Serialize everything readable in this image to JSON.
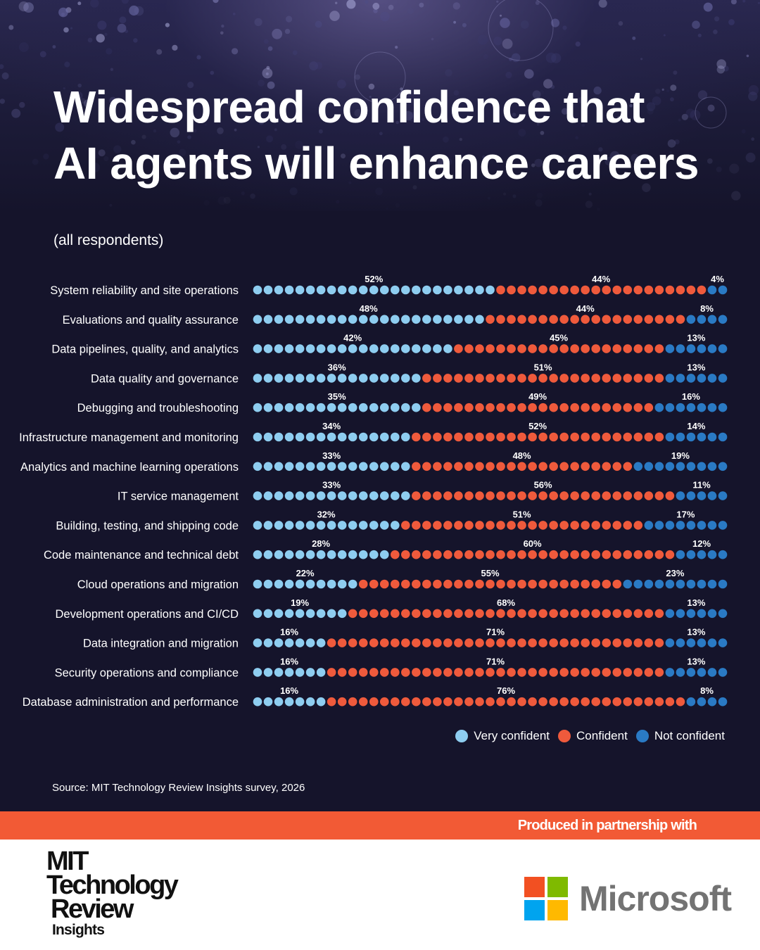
{
  "title_lines": [
    "Widespread confidence that",
    "AI agents will enhance careers"
  ],
  "subtitle": "(all respondents)",
  "source": "Source: MIT Technology Review Insights survey, 2026",
  "partnership_text": "Produced in partnership with",
  "mit_logo": {
    "line1": "MIT",
    "line2": "Technology",
    "line3": "Review",
    "line4": "Insights"
  },
  "partner_logo": {
    "name": "Microsoft",
    "tiles": [
      "#f25022",
      "#7fba00",
      "#00a4ef",
      "#ffb900"
    ]
  },
  "colors": {
    "background": "#15142b",
    "very_confident": "#8ecdf0",
    "confident": "#ef5a3c",
    "not_confident": "#2a7ac4",
    "band": "#f25a35"
  },
  "chart_data": {
    "type": "bar",
    "style": "dot-stacked-horizontal-100",
    "series_names": [
      "Very confident",
      "Confident",
      "Not confident"
    ],
    "legend_position": "bottom-right",
    "categories": [
      "System reliability and site operations",
      "Evaluations and quality assurance",
      "Data pipelines, quality, and analytics",
      "Data quality and governance",
      "Debugging and troubleshooting",
      "Infrastructure management and monitoring",
      "Analytics and machine learning operations",
      "IT service management",
      "Building, testing, and shipping code",
      "Code maintenance and technical debt",
      "Cloud operations and migration",
      "Development operations and CI/CD",
      "Data integration and migration",
      "Security operations and compliance",
      "Database administration and performance"
    ],
    "series": [
      {
        "name": "Very confident",
        "values": [
          52,
          48,
          42,
          36,
          35,
          34,
          33,
          33,
          32,
          28,
          22,
          19,
          16,
          16,
          16
        ],
        "labels": [
          "52%",
          "48%",
          "42%",
          "36%",
          "35%",
          "34%",
          "33%",
          "33%",
          "32%",
          "28%",
          "22%",
          "19%",
          "16%",
          "16%",
          "16%"
        ]
      },
      {
        "name": "Confident",
        "values": [
          44,
          44,
          45,
          51,
          49,
          52,
          48,
          56,
          51,
          60,
          55,
          68,
          71,
          71,
          76
        ],
        "labels": [
          "44%",
          "44%",
          "45%",
          "51%",
          "49%",
          "52%",
          "48%",
          "56%",
          "51%",
          "60%",
          "55%",
          "68%",
          "71%",
          "71%",
          "76%"
        ]
      },
      {
        "name": "Not confident",
        "values": [
          4,
          8,
          13,
          13,
          16,
          14,
          19,
          11,
          17,
          12,
          23,
          13,
          13,
          13,
          8
        ],
        "labels": [
          "4%",
          "8%",
          "13%",
          "13%",
          "16%",
          "14%",
          "19%",
          "11%",
          "17%",
          "12%",
          "23%",
          "13%",
          "13%",
          "13%",
          "8%"
        ]
      }
    ]
  }
}
